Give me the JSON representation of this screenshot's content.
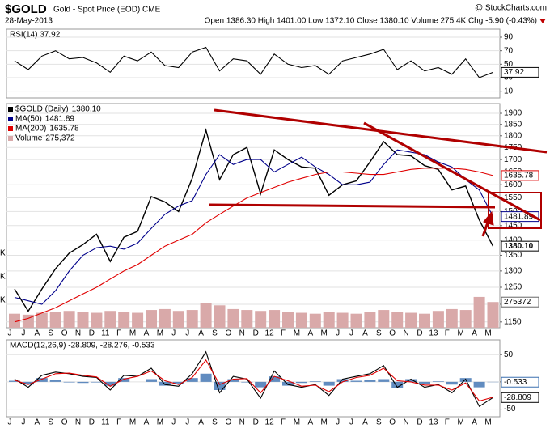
{
  "header": {
    "symbol": "$GOLD",
    "name": "Gold - Spot Price (EOD) CME",
    "source": "@ StockCharts.com",
    "date": "28-May-2013",
    "quote": "Open 1386.30 High 1401.00 Low 1372.10 Close 1380.10 Volume 275.4K Chg -5.90 (-0.43%)"
  },
  "chart_data": [
    {
      "type": "line",
      "title": "RSI(14) 37.92",
      "color": "#000000",
      "values": [
        55,
        42,
        62,
        70,
        58,
        60,
        52,
        38,
        62,
        55,
        68,
        48,
        45,
        68,
        75,
        40,
        58,
        55,
        35,
        65,
        50,
        45,
        48,
        35,
        55,
        60,
        65,
        72,
        42,
        55,
        40,
        45,
        35,
        58,
        30,
        37.92
      ],
      "last": 37.92,
      "ylim": [
        0,
        102
      ],
      "yticks": [
        10,
        30,
        50,
        70,
        90
      ],
      "grid": true
    },
    {
      "type": "line",
      "log": true,
      "legend": "top-left",
      "categories": [
        "J",
        "J",
        "A",
        "S",
        "O",
        "N",
        "D",
        "11",
        "F",
        "M",
        "A",
        "M",
        "J",
        "J",
        "A",
        "S",
        "O",
        "N",
        "D",
        "12",
        "F",
        "M",
        "A",
        "M",
        "J",
        "J",
        "A",
        "S",
        "O",
        "N",
        "D",
        "13",
        "F",
        "M",
        "A",
        "M"
      ],
      "series": [
        {
          "name": "$GOLD (Daily)",
          "color": "#000000",
          "last": {
            "value": 1380.1,
            "label": "1380.10"
          },
          "values": [
            1245,
            1180,
            1245,
            1307,
            1357,
            1385,
            1420,
            1330,
            1410,
            1430,
            1555,
            1535,
            1500,
            1625,
            1825,
            1620,
            1720,
            1750,
            1565,
            1740,
            1700,
            1670,
            1665,
            1560,
            1600,
            1615,
            1690,
            1775,
            1720,
            1715,
            1675,
            1660,
            1580,
            1595,
            1470,
            1380.1
          ]
        },
        {
          "name": "MA(50)",
          "color": "#00008b",
          "last": 1481.89,
          "values": [
            1220,
            1210,
            1200,
            1240,
            1300,
            1350,
            1375,
            1380,
            1370,
            1390,
            1440,
            1490,
            1520,
            1540,
            1640,
            1720,
            1680,
            1700,
            1700,
            1650,
            1680,
            1710,
            1670,
            1640,
            1600,
            1600,
            1610,
            1680,
            1740,
            1730,
            1720,
            1690,
            1670,
            1620,
            1580,
            1481.89
          ]
        },
        {
          "name": "MA(200)",
          "color": "#e00000",
          "last": 1635.78,
          "values": [
            1150,
            1160,
            1175,
            1190,
            1210,
            1230,
            1250,
            1275,
            1300,
            1320,
            1350,
            1380,
            1400,
            1420,
            1460,
            1490,
            1520,
            1550,
            1570,
            1590,
            1610,
            1625,
            1640,
            1650,
            1650,
            1645,
            1640,
            1640,
            1650,
            1660,
            1665,
            1665,
            1665,
            1660,
            1650,
            1635.78
          ]
        }
      ],
      "volume": {
        "name": "Volume",
        "last": 275372,
        "last_label": "275,372",
        "color": "#d9a9a9",
        "vlim": [
          0,
          2400000
        ],
        "values": [
          150000,
          140000,
          160000,
          170000,
          180000,
          170000,
          160000,
          180000,
          170000,
          160000,
          190000,
          200000,
          180000,
          190000,
          260000,
          240000,
          200000,
          190000,
          180000,
          190000,
          170000,
          160000,
          150000,
          170000,
          160000,
          150000,
          170000,
          190000,
          170000,
          160000,
          150000,
          180000,
          200000,
          190000,
          330000,
          275372
        ]
      },
      "volume_tick_labels": [
        "K",
        "K",
        "K"
      ],
      "ylim": [
        1134,
        1945
      ],
      "yticks": [
        1150,
        1200,
        1250,
        1300,
        1350,
        1400,
        1450,
        1500,
        1550,
        1600,
        1650,
        1700,
        1750,
        1800,
        1850,
        1900
      ],
      "grid": true
    },
    {
      "type": "line",
      "title": "MACD(12,26,9) -28.809, -28.276, -0.533",
      "categories": [
        "J",
        "J",
        "A",
        "S",
        "O",
        "N",
        "D",
        "11",
        "F",
        "M",
        "A",
        "M",
        "J",
        "J",
        "A",
        "S",
        "O",
        "N",
        "D",
        "12",
        "F",
        "M",
        "A",
        "M",
        "J",
        "J",
        "A",
        "S",
        "O",
        "N",
        "D",
        "13",
        "F",
        "M",
        "A",
        "M"
      ],
      "series": [
        {
          "color": "#000000",
          "last": -28.809,
          "values": [
            5,
            -10,
            12,
            18,
            15,
            10,
            8,
            -15,
            12,
            10,
            25,
            -5,
            -8,
            15,
            55,
            -20,
            10,
            5,
            -30,
            20,
            -5,
            -10,
            -5,
            -25,
            5,
            10,
            15,
            30,
            -10,
            5,
            -10,
            -5,
            -20,
            5,
            -45,
            -28.809
          ]
        },
        {
          "color": "#e00000",
          "values": [
            3,
            -5,
            5,
            15,
            16,
            12,
            9,
            -8,
            5,
            10,
            20,
            2,
            -5,
            8,
            40,
            -5,
            5,
            6,
            -20,
            10,
            2,
            -8,
            -6,
            -18,
            0,
            8,
            12,
            25,
            2,
            0,
            -6,
            -6,
            -15,
            -2,
            -35,
            -28.276
          ]
        }
      ],
      "histogram": {
        "color": "#3a6fb0",
        "last": -0.533,
        "values": [
          2,
          -5,
          7,
          3,
          -1,
          -2,
          -1,
          -7,
          7,
          0,
          5,
          -7,
          -3,
          7,
          15,
          -15,
          5,
          -1,
          -10,
          10,
          -7,
          -2,
          1,
          -7,
          5,
          2,
          3,
          5,
          -12,
          5,
          -4,
          1,
          -5,
          7,
          -10,
          -0.533
        ]
      },
      "ylim": [
        -64,
        77
      ],
      "yticks": [
        -50,
        0,
        50
      ],
      "grid": true
    }
  ]
}
